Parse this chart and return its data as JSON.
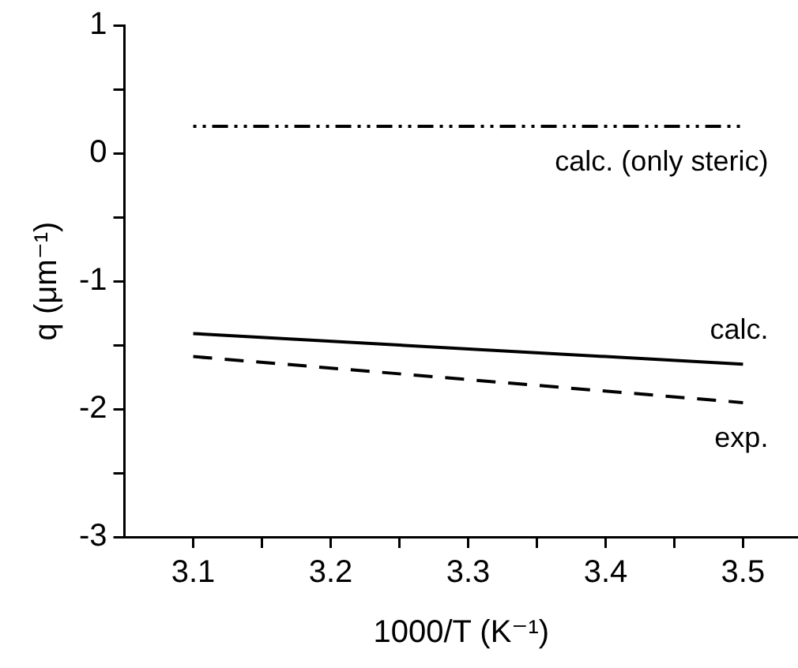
{
  "chart_data": {
    "type": "line",
    "xlabel": "1000/T (K⁻¹)",
    "ylabel": "q (μm⁻¹)",
    "xlim": [
      3.05,
      3.54
    ],
    "xticks": [
      3.1,
      {
        "value": 3.15,
        "label": null
      },
      3.2,
      {
        "value": 3.25,
        "label": null
      },
      3.3,
      {
        "value": 3.35,
        "label": null
      },
      3.4,
      {
        "value": 3.45,
        "label": null
      },
      3.5
    ],
    "ylim": [
      -3,
      1
    ],
    "yticks": [
      -3,
      {
        "value": -2.5,
        "label": null
      },
      -2,
      {
        "value": -1.5,
        "label": null
      },
      -1,
      {
        "value": -0.5,
        "label": null
      },
      0,
      {
        "value": 0.5,
        "label": null
      },
      1
    ],
    "grid": false,
    "legend": false,
    "marker": "none",
    "x": [
      3.1,
      3.5
    ],
    "series": [
      {
        "name": "calc. (only steric)",
        "color": "#000000",
        "line_style": "dotted",
        "values": [
          0.21,
          0.21
        ]
      },
      {
        "name": "calc.",
        "color": "#000000",
        "line_style": "solid",
        "values": [
          -1.41,
          -1.65
        ]
      },
      {
        "name": "exp.",
        "color": "#000000",
        "line_style": "dashed",
        "values": [
          -1.59,
          -1.95
        ]
      }
    ]
  }
}
